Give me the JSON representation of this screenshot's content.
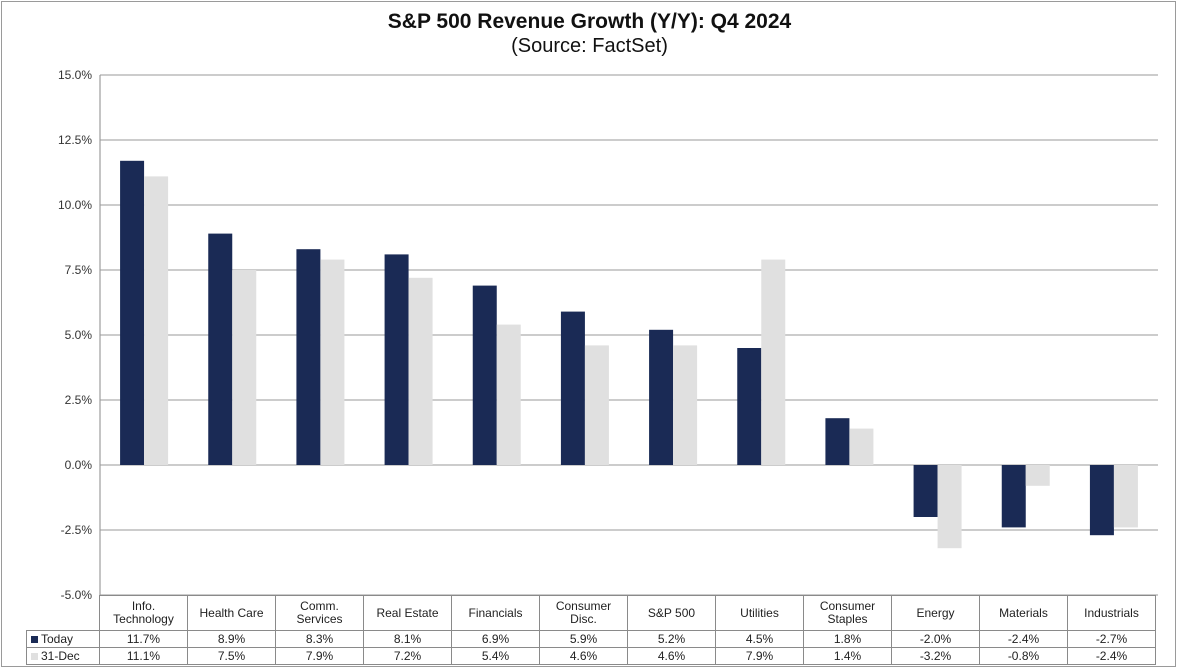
{
  "chart_data": {
    "type": "bar",
    "title": "S&P 500 Revenue Growth (Y/Y): Q4 2024",
    "subtitle": "(Source: FactSet)",
    "xlabel": "",
    "ylabel": "",
    "ylim": [
      -5.0,
      15.0
    ],
    "yticks": [
      15.0,
      12.5,
      10.0,
      7.5,
      5.0,
      2.5,
      0.0,
      -2.5,
      -5.0
    ],
    "ytick_labels": [
      "15.0%",
      "12.5%",
      "10.0%",
      "7.5%",
      "5.0%",
      "2.5%",
      "0.0%",
      "-2.5%",
      "-5.0%"
    ],
    "grid": true,
    "legend": "data-table",
    "categories": [
      "Info. Technology",
      "Health Care",
      "Comm. Services",
      "Real Estate",
      "Financials",
      "Consumer Disc.",
      "S&P 500",
      "Utilities",
      "Consumer Staples",
      "Energy",
      "Materials",
      "Industrials"
    ],
    "category_lines": [
      [
        "Info.",
        "Technology"
      ],
      [
        "Health Care"
      ],
      [
        "Comm.",
        "Services"
      ],
      [
        "Real Estate"
      ],
      [
        "Financials"
      ],
      [
        "Consumer",
        "Disc."
      ],
      [
        "S&P 500"
      ],
      [
        "Utilities"
      ],
      [
        "Consumer",
        "Staples"
      ],
      [
        "Energy"
      ],
      [
        "Materials"
      ],
      [
        "Industrials"
      ]
    ],
    "series": [
      {
        "name": "Today",
        "color": "#1a2a55",
        "values": [
          11.7,
          8.9,
          8.3,
          8.1,
          6.9,
          5.9,
          5.2,
          4.5,
          1.8,
          -2.0,
          -2.4,
          -2.7
        ],
        "labels": [
          "11.7%",
          "8.9%",
          "8.3%",
          "8.1%",
          "6.9%",
          "5.9%",
          "5.2%",
          "4.5%",
          "1.8%",
          "-2.0%",
          "-2.4%",
          "-2.7%"
        ]
      },
      {
        "name": "31-Dec",
        "color": "#e0e0e0",
        "values": [
          11.1,
          7.5,
          7.9,
          7.2,
          5.4,
          4.6,
          4.6,
          7.9,
          1.4,
          -3.2,
          -0.8,
          -2.4
        ],
        "labels": [
          "11.1%",
          "7.5%",
          "7.9%",
          "7.2%",
          "5.4%",
          "4.6%",
          "4.6%",
          "7.9%",
          "1.4%",
          "-3.2%",
          "-0.8%",
          "-2.4%"
        ]
      }
    ]
  }
}
